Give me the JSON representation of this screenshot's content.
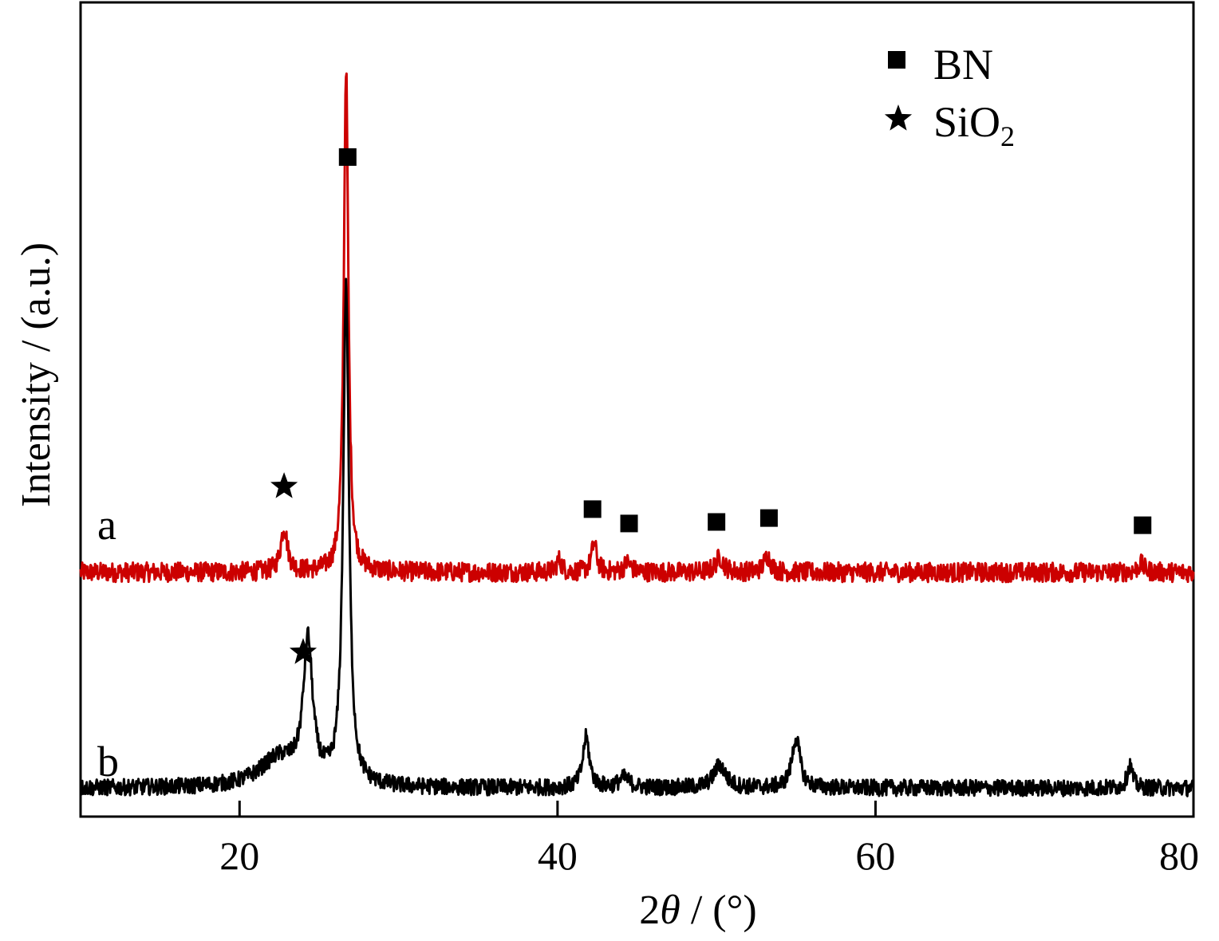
{
  "chart_data": {
    "type": "line",
    "title": "",
    "xlabel_parts": [
      "2",
      "θ",
      " / (°)"
    ],
    "ylabel": "Intensity / (a.u.)",
    "xlim": [
      10,
      80
    ],
    "xticks": [
      20,
      40,
      60,
      80
    ],
    "ylim": [
      0,
      1
    ],
    "grid": false,
    "legend": {
      "placement": "top-right",
      "entries": [
        {
          "marker": "square",
          "label": "BN"
        },
        {
          "marker": "star",
          "label_main": "SiO",
          "label_sub": "2"
        }
      ]
    },
    "series": [
      {
        "name": "a",
        "color": "#cc0000",
        "baseline": 0.3,
        "noise": 0.012,
        "peaks": [
          {
            "x": 22.8,
            "h": 0.055,
            "w": 0.25
          },
          {
            "x": 26.7,
            "h": 0.62,
            "w": 0.17
          },
          {
            "x": 40.1,
            "h": 0.015,
            "w": 0.2
          },
          {
            "x": 42.3,
            "h": 0.035,
            "w": 0.2
          },
          {
            "x": 44.4,
            "h": 0.012,
            "w": 0.25
          },
          {
            "x": 50.2,
            "h": 0.018,
            "w": 0.3
          },
          {
            "x": 53.2,
            "h": 0.02,
            "w": 0.25
          },
          {
            "x": 76.7,
            "h": 0.01,
            "w": 0.25
          }
        ],
        "markers": [
          {
            "x": 22.8,
            "type": "star"
          },
          {
            "x": 26.8,
            "type": "square"
          },
          {
            "x": 42.2,
            "type": "square"
          },
          {
            "x": 44.5,
            "type": "square"
          },
          {
            "x": 50.0,
            "type": "square"
          },
          {
            "x": 53.3,
            "type": "square"
          },
          {
            "x": 76.8,
            "type": "square"
          }
        ]
      },
      {
        "name": "b",
        "color": "#000000",
        "baseline": 0.035,
        "noise": 0.01,
        "peaks": [
          {
            "x": 22.5,
            "h": 0.035,
            "w": 1.5
          },
          {
            "x": 24.3,
            "h": 0.17,
            "w": 0.35
          },
          {
            "x": 26.7,
            "h": 0.61,
            "w": 0.22
          },
          {
            "x": 41.8,
            "h": 0.062,
            "w": 0.25
          },
          {
            "x": 44.2,
            "h": 0.012,
            "w": 0.4
          },
          {
            "x": 50.2,
            "h": 0.028,
            "w": 0.45
          },
          {
            "x": 55.0,
            "h": 0.062,
            "w": 0.3
          },
          {
            "x": 76.0,
            "h": 0.028,
            "w": 0.2
          }
        ],
        "markers": [
          {
            "x": 24.0,
            "type": "star"
          }
        ]
      }
    ]
  }
}
